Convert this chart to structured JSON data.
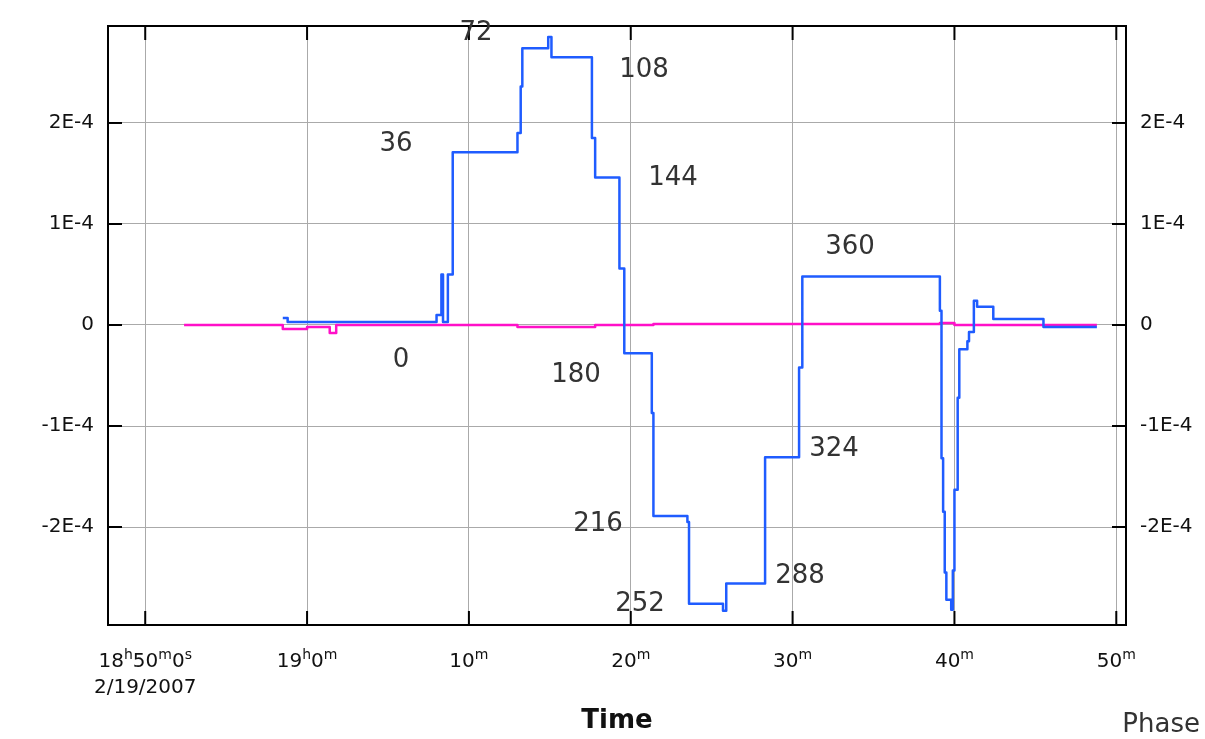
{
  "chart_data": {
    "type": "step",
    "xlabel": "Time",
    "xlim": [
      -12.3,
      50.6
    ],
    "xticks": [
      {
        "value": -10,
        "label": "18$^{h}$50$^{m}$0$^{s}$\n2/19/2007"
      },
      {
        "value": 0,
        "label": "19$^{h}$0$^{m}$"
      },
      {
        "value": 10,
        "label": "10$^{m}$"
      },
      {
        "value": 20,
        "label": "20$^{m}$"
      },
      {
        "value": 30,
        "label": "30$^{m}$"
      },
      {
        "value": 40,
        "label": "40$^{m}$"
      },
      {
        "value": 50,
        "label": "50$^{m}$"
      }
    ],
    "ylim": [
      -0.000297,
      0.000296
    ],
    "yticks": [
      {
        "value": -0.0002,
        "label": "-2E-4"
      },
      {
        "value": -0.0001,
        "label": "-1E-4"
      },
      0,
      {
        "value": 0.0001,
        "label": "1E-4"
      },
      {
        "value": 0.0002,
        "label": "2E-4"
      }
    ],
    "y2lim": [
      -0.000297,
      0.000296
    ],
    "y2ticks": [
      {
        "value": -0.0002,
        "label": "-2E-4"
      },
      {
        "value": -0.0001,
        "label": "-1E-4"
      },
      0,
      {
        "value": 0.0001,
        "label": "1E-4"
      },
      {
        "value": 0.0002,
        "label": "2E-4"
      }
    ],
    "grid": true,
    "series": [
      {
        "color": "#1f5cff",
        "x": [
          -1.5,
          -1.2,
          8.0,
          8.3,
          8.4,
          8.7,
          9.0,
          13.0,
          13.2,
          13.3,
          14.9,
          15.1,
          17.6,
          17.8,
          19.3,
          19.6,
          21.3,
          21.4,
          23.5,
          23.6,
          25.7,
          25.9,
          28.3,
          30.4,
          30.6,
          39.1,
          39.2,
          39.3,
          39.4,
          39.5,
          39.8,
          39.9,
          40.0,
          40.2,
          40.3,
          40.8,
          40.9,
          41.2,
          41.4,
          42.4,
          45.5,
          48.8
        ],
        "values": [
          7e-06,
          3e-06,
          1e-05,
          5e-05,
          3e-06,
          5e-05,
          0.000171,
          0.00019,
          0.000236,
          0.000274,
          0.000285,
          0.000265,
          0.000185,
          0.000146,
          5.6e-05,
          -2.8e-05,
          -8.7e-05,
          -0.000189,
          -0.000195,
          -0.000276,
          -0.000283,
          -0.000256,
          -0.000131,
          -4.2e-05,
          4.8e-05,
          1.4e-05,
          -0.000132,
          -0.000185,
          -0.000245,
          -0.000272,
          -0.000282,
          -0.000243,
          -0.000163,
          -7.2e-05,
          -2.4e-05,
          -1.6e-05,
          -7e-06,
          2.4e-05,
          1.8e-05,
          6e-06,
          -2e-06,
          -2e-06
        ]
      },
      {
        "color": "#ff10c8",
        "x": [
          -7.6,
          -1.5,
          0,
          1.4,
          1.8,
          13.0,
          17.8,
          21.4,
          39.1,
          40.0,
          48.8
        ],
        "values": [
          0,
          -4e-06,
          -2e-06,
          -8e-06,
          0,
          -2e-06,
          0,
          1e-06,
          2e-06,
          0,
          0
        ]
      }
    ],
    "annotations": [
      "0",
      "36",
      "72",
      "108",
      "144",
      "180",
      "216",
      "252",
      "288",
      "324",
      "360",
      "Phase"
    ]
  }
}
